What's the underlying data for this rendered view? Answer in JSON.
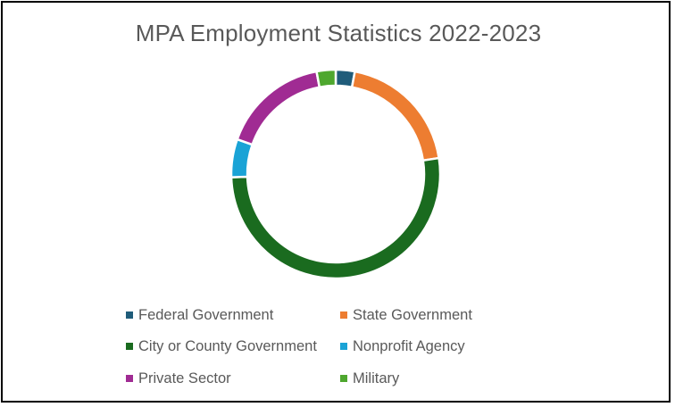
{
  "chart_data": {
    "type": "pie",
    "title": "MPA Employment Statistics 2022-2023",
    "hole": "donut",
    "categories": [
      "Federal Government",
      "State Government",
      "City or County Government",
      "Nonprofit Agency",
      "Private Sector",
      "Military"
    ],
    "values": [
      3,
      20,
      53,
      6,
      17,
      3
    ],
    "colors": [
      "#1F5C7A",
      "#ED7D31",
      "#1A6B1F",
      "#1AA3D6",
      "#A02B93",
      "#4EA72E"
    ],
    "legend": "bottom"
  }
}
